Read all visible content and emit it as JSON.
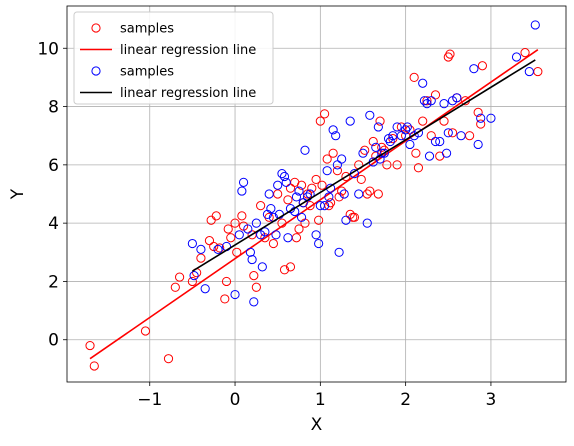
{
  "chart_data": {
    "type": "scatter",
    "xlabel": "X",
    "ylabel": "Y",
    "xlim": [
      -1.97,
      3.88
    ],
    "ylim": [
      -1.45,
      11.45
    ],
    "xticks": [
      -1,
      0,
      1,
      2,
      3
    ],
    "yticks": [
      0,
      2,
      4,
      6,
      8,
      10
    ],
    "xtick_labels": [
      "−1",
      "0",
      "1",
      "2",
      "3"
    ],
    "ytick_labels": [
      "0",
      "2",
      "4",
      "6",
      "8",
      "10"
    ],
    "grid": true,
    "legend_position": "top-left",
    "series": [
      {
        "name": "samples",
        "kind": "scatter",
        "color": "#ff0000",
        "points": [
          [
            -1.7,
            -0.2
          ],
          [
            -1.65,
            -0.9
          ],
          [
            -1.05,
            0.3
          ],
          [
            -0.78,
            -0.65
          ],
          [
            -0.7,
            1.8
          ],
          [
            -0.65,
            2.15
          ],
          [
            -0.5,
            2.0
          ],
          [
            -0.45,
            2.3
          ],
          [
            -0.4,
            2.8
          ],
          [
            -0.3,
            3.4
          ],
          [
            -0.28,
            4.1
          ],
          [
            -0.25,
            3.2
          ],
          [
            -0.22,
            4.25
          ],
          [
            -0.18,
            3.15
          ],
          [
            -0.12,
            1.4
          ],
          [
            -0.1,
            2.0
          ],
          [
            -0.08,
            3.8
          ],
          [
            -0.05,
            3.5
          ],
          [
            0.0,
            4.0
          ],
          [
            0.02,
            3.0
          ],
          [
            0.08,
            4.25
          ],
          [
            0.1,
            3.9
          ],
          [
            0.2,
            3.6
          ],
          [
            0.22,
            2.2
          ],
          [
            0.25,
            1.8
          ],
          [
            0.3,
            4.6
          ],
          [
            0.35,
            3.5
          ],
          [
            0.4,
            4.2
          ],
          [
            0.45,
            3.3
          ],
          [
            0.5,
            5.0
          ],
          [
            0.55,
            4.0
          ],
          [
            0.58,
            2.4
          ],
          [
            0.62,
            4.8
          ],
          [
            0.65,
            5.2
          ],
          [
            0.65,
            2.5
          ],
          [
            0.7,
            5.4
          ],
          [
            0.72,
            3.5
          ],
          [
            0.75,
            3.8
          ],
          [
            0.78,
            5.3
          ],
          [
            0.8,
            4.7
          ],
          [
            0.82,
            4.0
          ],
          [
            0.85,
            5.0
          ],
          [
            0.88,
            4.6
          ],
          [
            0.9,
            5.2
          ],
          [
            0.95,
            5.5
          ],
          [
            0.98,
            4.1
          ],
          [
            1.0,
            7.5
          ],
          [
            1.02,
            5.3
          ],
          [
            1.05,
            7.75
          ],
          [
            1.08,
            6.2
          ],
          [
            1.1,
            4.6
          ],
          [
            1.12,
            4.7
          ],
          [
            1.15,
            6.4
          ],
          [
            1.2,
            5.8
          ],
          [
            1.22,
            4.9
          ],
          [
            1.25,
            5.1
          ],
          [
            1.3,
            5.6
          ],
          [
            1.35,
            4.3
          ],
          [
            1.38,
            4.2
          ],
          [
            1.4,
            4.2
          ],
          [
            1.45,
            6.0
          ],
          [
            1.48,
            5.5
          ],
          [
            1.52,
            6.5
          ],
          [
            1.55,
            5.0
          ],
          [
            1.58,
            5.1
          ],
          [
            1.62,
            6.8
          ],
          [
            1.65,
            6.3
          ],
          [
            1.68,
            5.0
          ],
          [
            1.7,
            7.5
          ],
          [
            1.72,
            6.6
          ],
          [
            1.75,
            6.5
          ],
          [
            1.78,
            6.0
          ],
          [
            1.85,
            6.9
          ],
          [
            1.9,
            6.0
          ],
          [
            1.95,
            7.3
          ],
          [
            2.0,
            7.0
          ],
          [
            2.05,
            7.2
          ],
          [
            2.1,
            9.0
          ],
          [
            2.12,
            6.4
          ],
          [
            2.15,
            5.9
          ],
          [
            2.2,
            7.5
          ],
          [
            2.25,
            8.2
          ],
          [
            2.3,
            7.0
          ],
          [
            2.35,
            8.4
          ],
          [
            2.4,
            6.3
          ],
          [
            2.45,
            7.5
          ],
          [
            2.5,
            9.7
          ],
          [
            2.52,
            9.8
          ],
          [
            2.55,
            7.1
          ],
          [
            2.6,
            8.3
          ],
          [
            2.7,
            8.2
          ],
          [
            2.75,
            7.0
          ],
          [
            2.85,
            7.8
          ],
          [
            2.88,
            7.4
          ],
          [
            2.9,
            9.4
          ],
          [
            3.4,
            9.85
          ],
          [
            3.55,
            9.2
          ]
        ]
      },
      {
        "name": "linear regression line",
        "kind": "line",
        "color": "#ff0000",
        "points": [
          [
            -1.7,
            -0.65
          ],
          [
            3.55,
            9.95
          ]
        ]
      },
      {
        "name": "samples",
        "kind": "scatter",
        "color": "#0000ff",
        "points": [
          [
            -0.5,
            3.3
          ],
          [
            -0.48,
            2.2
          ],
          [
            -0.4,
            3.1
          ],
          [
            -0.35,
            1.75
          ],
          [
            -0.2,
            3.1
          ],
          [
            -0.1,
            3.2
          ],
          [
            0.0,
            1.55
          ],
          [
            0.05,
            3.6
          ],
          [
            0.08,
            5.1
          ],
          [
            0.1,
            5.4
          ],
          [
            0.15,
            3.8
          ],
          [
            0.18,
            3.0
          ],
          [
            0.2,
            2.75
          ],
          [
            0.22,
            1.3
          ],
          [
            0.25,
            4.0
          ],
          [
            0.3,
            3.6
          ],
          [
            0.32,
            2.5
          ],
          [
            0.35,
            3.7
          ],
          [
            0.38,
            4.3
          ],
          [
            0.4,
            5.0
          ],
          [
            0.42,
            4.5
          ],
          [
            0.45,
            4.2
          ],
          [
            0.48,
            3.6
          ],
          [
            0.5,
            5.3
          ],
          [
            0.52,
            4.3
          ],
          [
            0.55,
            5.7
          ],
          [
            0.58,
            5.6
          ],
          [
            0.6,
            5.4
          ],
          [
            0.62,
            3.5
          ],
          [
            0.65,
            4.5
          ],
          [
            0.7,
            4.4
          ],
          [
            0.72,
            4.9
          ],
          [
            0.75,
            5.1
          ],
          [
            0.78,
            4.2
          ],
          [
            0.8,
            4.7
          ],
          [
            0.82,
            6.5
          ],
          [
            0.85,
            4.9
          ],
          [
            0.88,
            5.0
          ],
          [
            0.95,
            3.6
          ],
          [
            0.98,
            3.3
          ],
          [
            1.0,
            4.6
          ],
          [
            1.05,
            4.6
          ],
          [
            1.08,
            5.8
          ],
          [
            1.1,
            4.9
          ],
          [
            1.12,
            5.2
          ],
          [
            1.15,
            7.2
          ],
          [
            1.18,
            7.0
          ],
          [
            1.2,
            6.0
          ],
          [
            1.22,
            3.0
          ],
          [
            1.25,
            6.2
          ],
          [
            1.28,
            5.0
          ],
          [
            1.3,
            4.1
          ],
          [
            1.35,
            7.5
          ],
          [
            1.4,
            5.7
          ],
          [
            1.45,
            5.0
          ],
          [
            1.5,
            6.4
          ],
          [
            1.55,
            4.0
          ],
          [
            1.58,
            7.7
          ],
          [
            1.62,
            6.1
          ],
          [
            1.65,
            6.6
          ],
          [
            1.68,
            7.3
          ],
          [
            1.7,
            6.2
          ],
          [
            1.72,
            6.4
          ],
          [
            1.75,
            6.4
          ],
          [
            1.8,
            6.9
          ],
          [
            1.82,
            6.8
          ],
          [
            1.85,
            7.0
          ],
          [
            1.9,
            7.3
          ],
          [
            1.95,
            7.0
          ],
          [
            2.0,
            7.2
          ],
          [
            2.02,
            7.3
          ],
          [
            2.05,
            6.7
          ],
          [
            2.1,
            7.0
          ],
          [
            2.15,
            7.1
          ],
          [
            2.2,
            8.8
          ],
          [
            2.22,
            8.2
          ],
          [
            2.25,
            8.1
          ],
          [
            2.28,
            6.3
          ],
          [
            2.3,
            8.2
          ],
          [
            2.35,
            6.8
          ],
          [
            2.4,
            6.8
          ],
          [
            2.45,
            8.1
          ],
          [
            2.48,
            6.4
          ],
          [
            2.5,
            7.1
          ],
          [
            2.55,
            8.2
          ],
          [
            2.6,
            8.3
          ],
          [
            2.65,
            7.0
          ],
          [
            2.8,
            9.3
          ],
          [
            2.85,
            6.7
          ],
          [
            2.88,
            7.6
          ],
          [
            3.0,
            7.6
          ],
          [
            3.3,
            9.7
          ],
          [
            3.45,
            9.2
          ],
          [
            3.52,
            10.8
          ]
        ]
      },
      {
        "name": "linear regression line",
        "kind": "line",
        "color": "#000000",
        "points": [
          [
            -0.5,
            2.35
          ],
          [
            3.52,
            9.6
          ]
        ]
      }
    ]
  }
}
